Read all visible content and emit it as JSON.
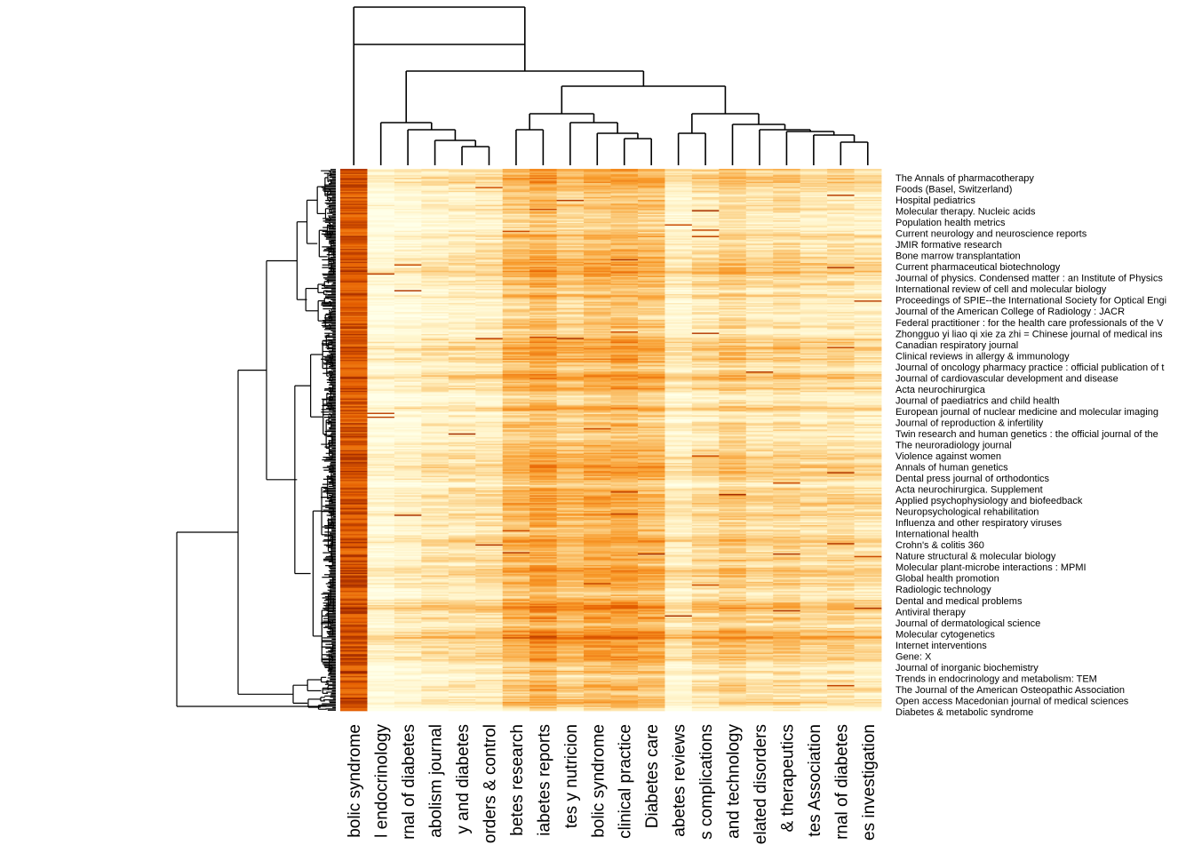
{
  "chart_data": {
    "type": "heatmap",
    "title": "",
    "xlabel": "",
    "ylabel": "",
    "n_rows": 420,
    "legend": "none",
    "palette": [
      "#8b1a00",
      "#e65f00",
      "#f89a2a",
      "#fbcc7e",
      "#fff3c8",
      "#ffffe8"
    ],
    "column_labels": [
      "bolic syndrome",
      "l endocrinology",
      "rnal of diabetes",
      "abolism journal",
      "y and diabetes",
      "orders & control",
      "betes research",
      "iabetes reports",
      "tes y nutricion",
      "bolic syndrome",
      "clinical practice",
      "Diabetes care",
      "abetes reviews",
      "s complications",
      "and technology",
      "elated disorders",
      "& therapeutics",
      "tes Association",
      "rnal of diabetes",
      "es investigation"
    ],
    "column_intensity": [
      0.82,
      0.1,
      0.16,
      0.22,
      0.24,
      0.26,
      0.44,
      0.52,
      0.42,
      0.48,
      0.5,
      0.46,
      0.2,
      0.3,
      0.38,
      0.3,
      0.34,
      0.28,
      0.3,
      0.26
    ],
    "row_labels": [
      "The Annals of pharmacotherapy",
      "Foods (Basel, Switzerland)",
      "Hospital pediatrics",
      "Molecular therapy. Nucleic acids",
      "Population health metrics",
      "Current neurology and neuroscience reports",
      "JMIR formative research",
      "Bone marrow transplantation",
      "Current pharmaceutical biotechnology",
      "Journal of physics. Condensed matter : an Institute of Physics",
      "International review of cell and molecular biology",
      "Proceedings of SPIE--the International Society for Optical Engi",
      "Journal of the American College of Radiology : JACR",
      "Federal practitioner : for the health care professionals of the V",
      "Zhongguo yi liao qi xie za zhi = Chinese journal of medical ins",
      "Canadian respiratory journal",
      "Clinical reviews in allergy & immunology",
      "Journal of oncology pharmacy practice : official publication of t",
      "Journal of cardiovascular development and disease",
      "Acta neurochirurgica",
      "Journal of paediatrics and child health",
      "European journal of nuclear medicine and molecular imaging",
      "Journal of reproduction & infertility",
      "Twin research and human genetics : the official journal of the",
      "The neuroradiology journal",
      "Violence against women",
      "Annals of human genetics",
      "Dental press journal of orthodontics",
      "Acta neurochirurgica. Supplement",
      "Applied psychophysiology and biofeedback",
      "Neuropsychological rehabilitation",
      "Influenza and other respiratory viruses",
      "International health",
      "Crohn's & colitis 360",
      "Nature structural & molecular biology",
      "Molecular plant-microbe interactions : MPMI",
      "Global health promotion",
      "Radiologic technology",
      "Dental and medical problems",
      "Antiviral therapy",
      "Journal of dermatological science",
      "Molecular cytogenetics",
      "Internet interventions",
      "Gene: X",
      "Journal of inorganic biochemistry",
      "Trends in endocrinology and metabolism: TEM",
      "The Journal of the American Osteopathic Association",
      "Open access Macedonian journal of medical sciences",
      "Diabetes & metabolic syndrome"
    ]
  }
}
